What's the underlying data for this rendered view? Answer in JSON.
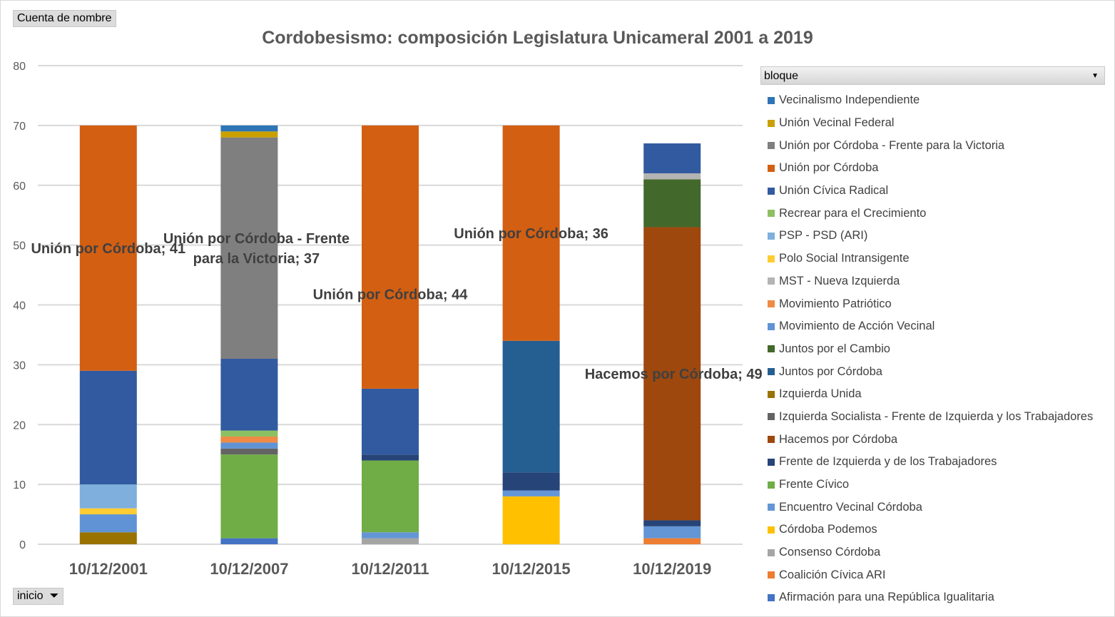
{
  "pivot": {
    "value_field": "Cuenta de nombre",
    "axis_field": "inicio",
    "legend_field": "bloque"
  },
  "chart_data": {
    "type": "bar",
    "stacked": true,
    "title": "Cordobesismo: composición Legislatura Unicameral 2001 a 2019",
    "categories": [
      "10/12/2001",
      "10/12/2007",
      "10/12/2011",
      "10/12/2015",
      "10/12/2019"
    ],
    "ylim": [
      0,
      80
    ],
    "yticks": [
      0,
      10,
      20,
      30,
      40,
      50,
      60,
      70,
      80
    ],
    "grid": true,
    "legend_position": "right",
    "series": [
      {
        "name": "Vecinalismo Independiente",
        "color": "#2e75b6",
        "values": [
          0,
          1,
          0,
          0,
          0
        ]
      },
      {
        "name": "Unión Vecinal Federal",
        "color": "#c9a000",
        "values": [
          0,
          1,
          0,
          0,
          0
        ]
      },
      {
        "name": "Unión por Córdoba - Frente para la Victoria",
        "color": "#7f7f7f",
        "values": [
          0,
          37,
          0,
          0,
          0
        ]
      },
      {
        "name": "Unión por Córdoba",
        "color": "#d35f12",
        "values": [
          41,
          0,
          44,
          36,
          0
        ]
      },
      {
        "name": "Unión Cívica Radical",
        "color": "#325aa0",
        "values": [
          19,
          12,
          11,
          0,
          5
        ]
      },
      {
        "name": "Recrear para el Crecimiento",
        "color": "#8dc063",
        "values": [
          0,
          1,
          0,
          0,
          0
        ]
      },
      {
        "name": "PSP - PSD (ARI)",
        "color": "#7eafdd",
        "values": [
          4,
          0,
          0,
          0,
          0
        ]
      },
      {
        "name": "Polo Social Intransigente",
        "color": "#ffcd33",
        "values": [
          1,
          0,
          0,
          0,
          0
        ]
      },
      {
        "name": "MST - Nueva Izquierda",
        "color": "#b4b4b4",
        "values": [
          0,
          0,
          0,
          0,
          1
        ]
      },
      {
        "name": "Movimiento Patriótico",
        "color": "#f08a45",
        "values": [
          0,
          1,
          0,
          0,
          0
        ]
      },
      {
        "name": "Movimiento de Acción Vecinal",
        "color": "#5f93d6",
        "values": [
          3,
          1,
          0,
          0,
          0
        ]
      },
      {
        "name": "Juntos por el Cambio",
        "color": "#43682b",
        "values": [
          0,
          0,
          0,
          0,
          8
        ]
      },
      {
        "name": "Juntos por Córdoba",
        "color": "#255e91",
        "values": [
          0,
          0,
          0,
          22,
          0
        ]
      },
      {
        "name": "Izquierda Unida",
        "color": "#997300",
        "values": [
          2,
          0,
          0,
          0,
          0
        ]
      },
      {
        "name": "Izquierda Socialista - Frente de Izquierda y los Trabajadores",
        "color": "#636363",
        "values": [
          0,
          1,
          0,
          0,
          0
        ]
      },
      {
        "name": "Hacemos por Córdoba",
        "color": "#9e480e",
        "values": [
          0,
          0,
          0,
          0,
          49
        ]
      },
      {
        "name": "Frente de Izquierda y de los Trabajadores",
        "color": "#264478",
        "values": [
          0,
          0,
          1,
          3,
          1
        ]
      },
      {
        "name": "Frente Cívico",
        "color": "#70ad47",
        "values": [
          0,
          14,
          12,
          0,
          0
        ]
      },
      {
        "name": "Encuentro Vecinal Córdoba",
        "color": "#6496d5",
        "values": [
          0,
          0,
          1,
          1,
          2
        ]
      },
      {
        "name": "Córdoba Podemos",
        "color": "#ffc000",
        "values": [
          0,
          0,
          0,
          8,
          0
        ]
      },
      {
        "name": "Consenso Córdoba",
        "color": "#a5a5a5",
        "values": [
          0,
          0,
          1,
          0,
          0
        ]
      },
      {
        "name": "Coalición Cívica ARI",
        "color": "#ed7d31",
        "values": [
          0,
          0,
          0,
          0,
          1
        ]
      },
      {
        "name": "Afirmación para una República Igualitaria",
        "color": "#4472c4",
        "values": [
          0,
          1,
          0,
          0,
          0
        ]
      }
    ],
    "data_labels": [
      {
        "category": "10/12/2001",
        "series": "Unión por Córdoba",
        "lines": [
          "Unión por Córdoba; 41"
        ]
      },
      {
        "category": "10/12/2007",
        "series": "Unión por Córdoba - Frente para la Victoria",
        "lines": [
          "Unión por Córdoba - Frente",
          "para la Victoria; 37"
        ]
      },
      {
        "category": "10/12/2011",
        "series": "Unión por Córdoba",
        "lines": [
          "Unión por Córdoba; 44"
        ]
      },
      {
        "category": "10/12/2015",
        "series": "Unión por Córdoba",
        "lines": [
          "Unión por Córdoba; 36"
        ]
      },
      {
        "category": "10/12/2019",
        "series": "Hacemos por Córdoba",
        "lines": [
          "Hacemos por Córdoba; 49"
        ]
      }
    ]
  }
}
